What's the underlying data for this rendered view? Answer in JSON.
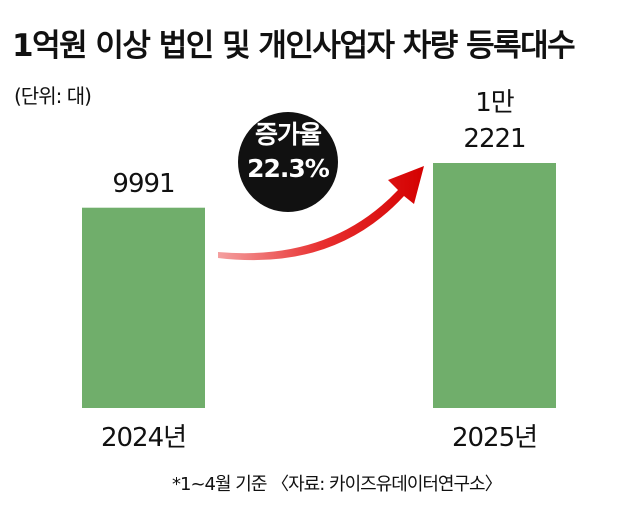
{
  "chart_data": {
    "type": "bar",
    "title": "1억원 이상 법인 및 개인사업자 차량 등록대수",
    "subtitle": "(단위: 대)",
    "categories": [
      "2024년",
      "2025년"
    ],
    "values": [
      9991,
      12221
    ],
    "value_labels": [
      "9991",
      "1만\n2221"
    ],
    "color": "#70ae6b",
    "annotation": "증가율\n22.3%",
    "footnote": "*1~4월 기준 〈자료: 카이즈유데이터연구소〉"
  }
}
